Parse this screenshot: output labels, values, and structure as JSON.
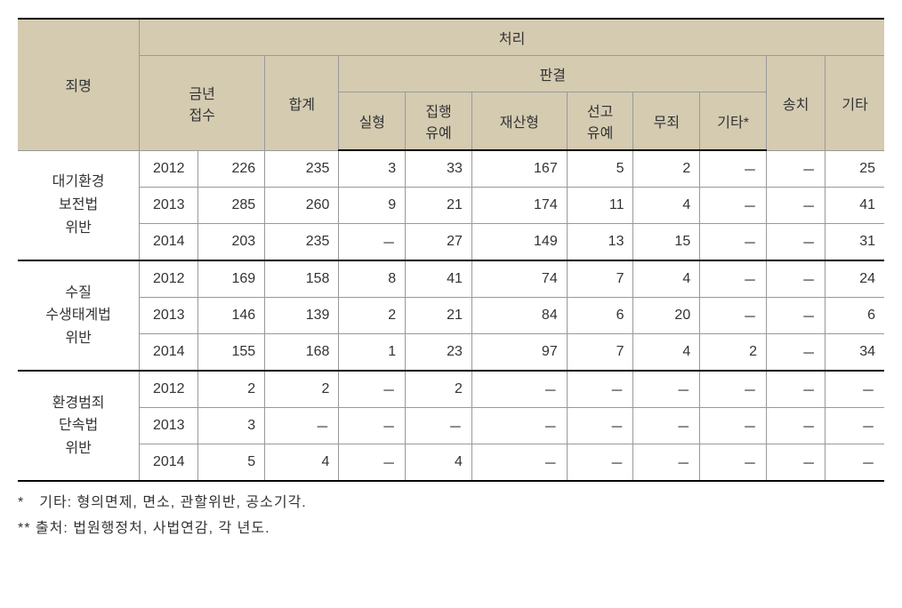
{
  "headers": {
    "group_top": "처리",
    "crime_name": "죄명",
    "current_year": "금년",
    "received": "접수",
    "total": "합계",
    "verdict": "판결",
    "real_sentence": "실형",
    "suspended": "집행유예",
    "property": "재산형",
    "announce_susp": "선고유예",
    "acquittal": "무죄",
    "etc_star": "기타*",
    "transfer": "송치",
    "etc": "기타"
  },
  "groups": [
    {
      "label": "대기환경보전법위반",
      "rows": [
        {
          "year": "2012",
          "received": "226",
          "total": "235",
          "real": "3",
          "susp": "33",
          "prop": "167",
          "ann": "5",
          "acq": "2",
          "etcs": "－",
          "trans": "－",
          "etc": "25"
        },
        {
          "year": "2013",
          "received": "285",
          "total": "260",
          "real": "9",
          "susp": "21",
          "prop": "174",
          "ann": "11",
          "acq": "4",
          "etcs": "－",
          "trans": "－",
          "etc": "41"
        },
        {
          "year": "2014",
          "received": "203",
          "total": "235",
          "real": "－",
          "susp": "27",
          "prop": "149",
          "ann": "13",
          "acq": "15",
          "etcs": "－",
          "trans": "－",
          "etc": "31"
        }
      ]
    },
    {
      "label": "수질수생태계법위반",
      "rows": [
        {
          "year": "2012",
          "received": "169",
          "total": "158",
          "real": "8",
          "susp": "41",
          "prop": "74",
          "ann": "7",
          "acq": "4",
          "etcs": "－",
          "trans": "－",
          "etc": "24"
        },
        {
          "year": "2013",
          "received": "146",
          "total": "139",
          "real": "2",
          "susp": "21",
          "prop": "84",
          "ann": "6",
          "acq": "20",
          "etcs": "－",
          "trans": "－",
          "etc": "6"
        },
        {
          "year": "2014",
          "received": "155",
          "total": "168",
          "real": "1",
          "susp": "23",
          "prop": "97",
          "ann": "7",
          "acq": "4",
          "etcs": "2",
          "trans": "－",
          "etc": "34"
        }
      ]
    },
    {
      "label": "환경범죄단속법위반",
      "rows": [
        {
          "year": "2012",
          "received": "2",
          "total": "2",
          "real": "－",
          "susp": "2",
          "prop": "－",
          "ann": "－",
          "acq": "－",
          "etcs": "－",
          "trans": "－",
          "etc": "－"
        },
        {
          "year": "2013",
          "received": "3",
          "total": "－",
          "real": "－",
          "susp": "－",
          "prop": "－",
          "ann": "－",
          "acq": "－",
          "etcs": "－",
          "trans": "－",
          "etc": "－"
        },
        {
          "year": "2014",
          "received": "5",
          "total": "4",
          "real": "－",
          "susp": "4",
          "prop": "－",
          "ann": "－",
          "acq": "－",
          "etcs": "－",
          "trans": "－",
          "etc": "－"
        }
      ]
    }
  ],
  "footnotes": {
    "line1": "*　기타: 형의면제, 면소, 관할위반, 공소기각.",
    "line2": "** 출처: 법원행정처, 사법연감, 각 년도."
  },
  "col_widths": {
    "crime": "128",
    "year": "62",
    "received": "70",
    "total": "78",
    "real": "70",
    "susp": "70",
    "prop": "100",
    "ann": "70",
    "acq": "70",
    "etcs": "70",
    "trans": "62",
    "etc": "62"
  }
}
